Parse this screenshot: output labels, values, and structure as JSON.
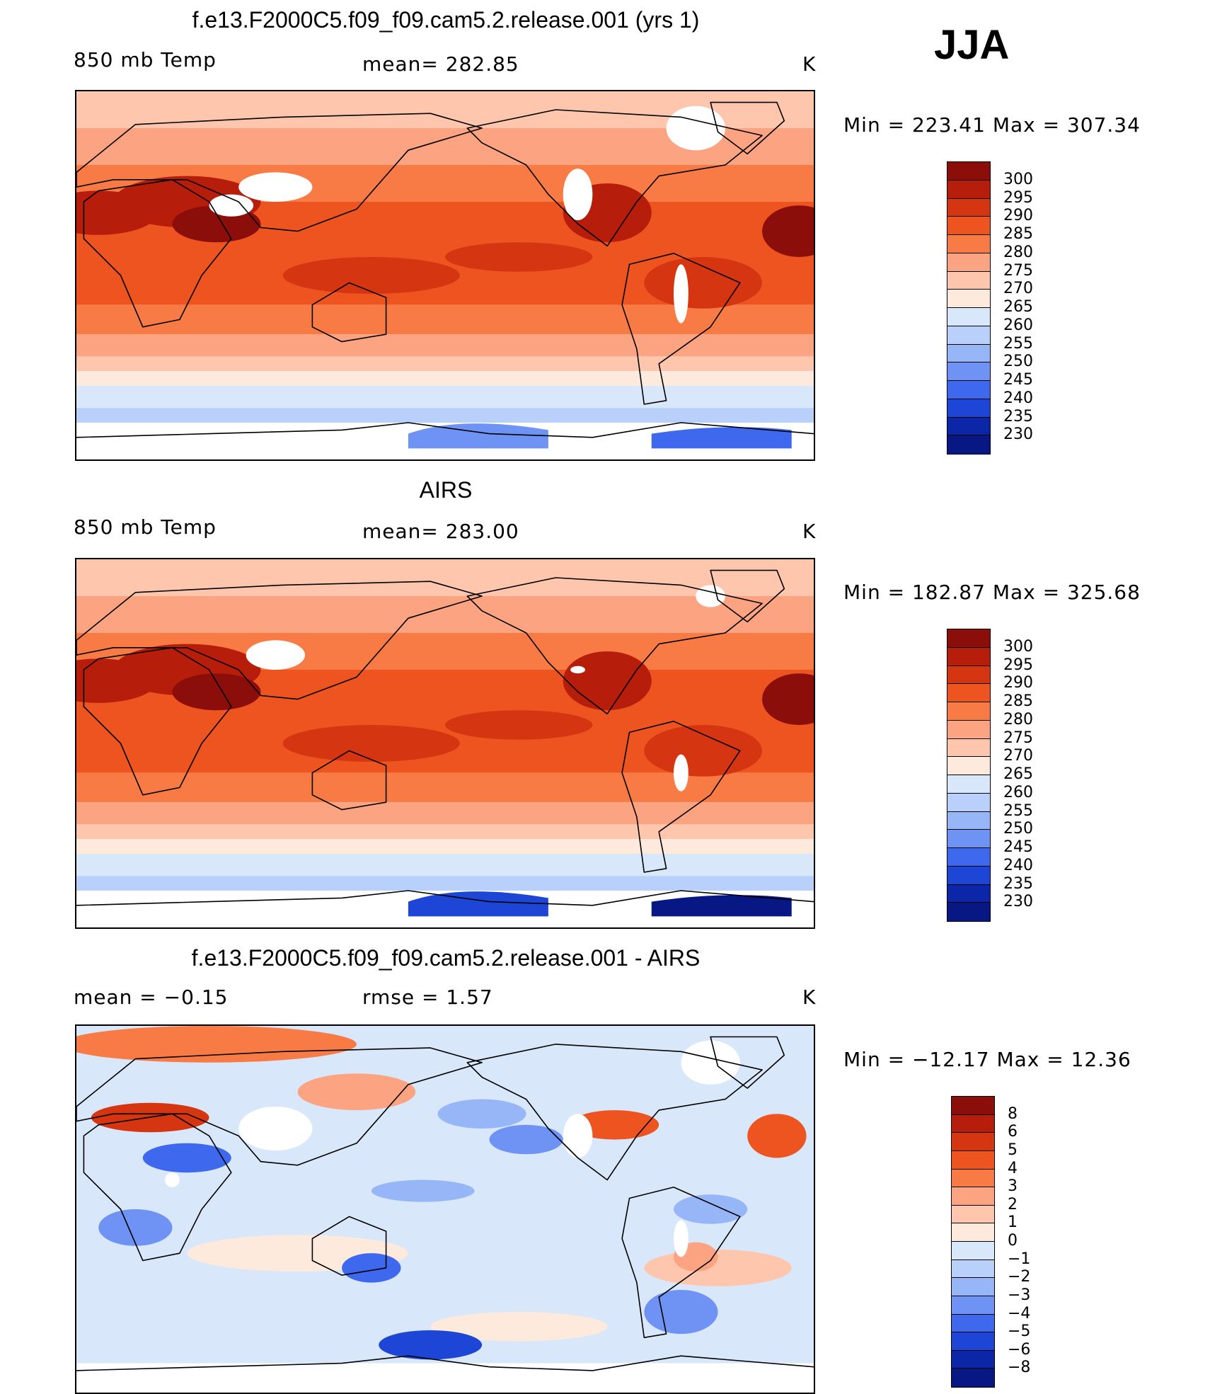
{
  "season": "JJA",
  "panels": [
    {
      "title": "f.e13.F2000C5.f09_f09.cam5.2.release.001 (yrs 1)",
      "left_label": "850 mb Temp",
      "center_label": "mean= 282.85",
      "units": "K",
      "minmax": "Min = 223.41 Max = 307.34",
      "colorbar": {
        "ticks": [
          "300",
          "295",
          "290",
          "285",
          "280",
          "275",
          "270",
          "265",
          "260",
          "255",
          "250",
          "245",
          "240",
          "235",
          "230"
        ],
        "colors": [
          "#8b0e0b",
          "#b71d0b",
          "#d63511",
          "#ee5420",
          "#f87a45",
          "#fca381",
          "#fec6ad",
          "#feeadd",
          "#d9e7fb",
          "#b9d1fa",
          "#96b6f8",
          "#6e93f4",
          "#3e68ee",
          "#1d45d6",
          "#0b27a8",
          "#071884"
        ]
      },
      "field_colors": [
        "#fec6ad",
        "#fca381",
        "#f87a45",
        "#ee5420",
        "#d63511",
        "#b71d0b",
        "#8b0e0b",
        "#feeadd",
        "#d9e7fb",
        "#b9d1fa",
        "#6e93f4",
        "#3e68ee"
      ]
    },
    {
      "title": "AIRS",
      "left_label": "850 mb Temp",
      "center_label": "mean= 283.00",
      "units": "K",
      "minmax": "Min = 182.87 Max = 325.68",
      "colorbar": {
        "ticks": [
          "300",
          "295",
          "290",
          "285",
          "280",
          "275",
          "270",
          "265",
          "260",
          "255",
          "250",
          "245",
          "240",
          "235",
          "230"
        ],
        "colors": [
          "#8b0e0b",
          "#b71d0b",
          "#d63511",
          "#ee5420",
          "#f87a45",
          "#fca381",
          "#fec6ad",
          "#feeadd",
          "#d9e7fb",
          "#b9d1fa",
          "#96b6f8",
          "#6e93f4",
          "#3e68ee",
          "#1d45d6",
          "#0b27a8",
          "#071884"
        ]
      },
      "field_colors": [
        "#fec6ad",
        "#fca381",
        "#f87a45",
        "#ee5420",
        "#d63511",
        "#b71d0b",
        "#8b0e0b",
        "#feeadd",
        "#d9e7fb",
        "#b9d1fa",
        "#1d45d6",
        "#071884"
      ]
    },
    {
      "title": "f.e13.F2000C5.f09_f09.cam5.2.release.001 - AIRS",
      "left_label": "mean =   −0.15",
      "center_label": "rmse =    1.57",
      "units": "K",
      "minmax": "Min = −12.17 Max =   12.36",
      "colorbar": {
        "ticks": [
          "8",
          "6",
          "5",
          "4",
          "3",
          "2",
          "1",
          "0",
          "−1",
          "−2",
          "−3",
          "−4",
          "−5",
          "−6",
          "−8"
        ],
        "colors": [
          "#8b0e0b",
          "#b71d0b",
          "#d63511",
          "#ee5420",
          "#f87a45",
          "#fca381",
          "#fec6ad",
          "#feeadd",
          "#d9e7fb",
          "#b9d1fa",
          "#96b6f8",
          "#6e93f4",
          "#3e68ee",
          "#1d45d6",
          "#0b27a8",
          "#071884"
        ]
      },
      "field_colors": [
        "#d9e7fb",
        "#feeadd",
        "#b9d1fa",
        "#96b6f8",
        "#fca381",
        "#f87a45",
        "#d63511",
        "#3e68ee",
        "#fec6ad",
        "#6e93f4",
        "#ee5420",
        "#1d45d6"
      ]
    }
  ]
}
